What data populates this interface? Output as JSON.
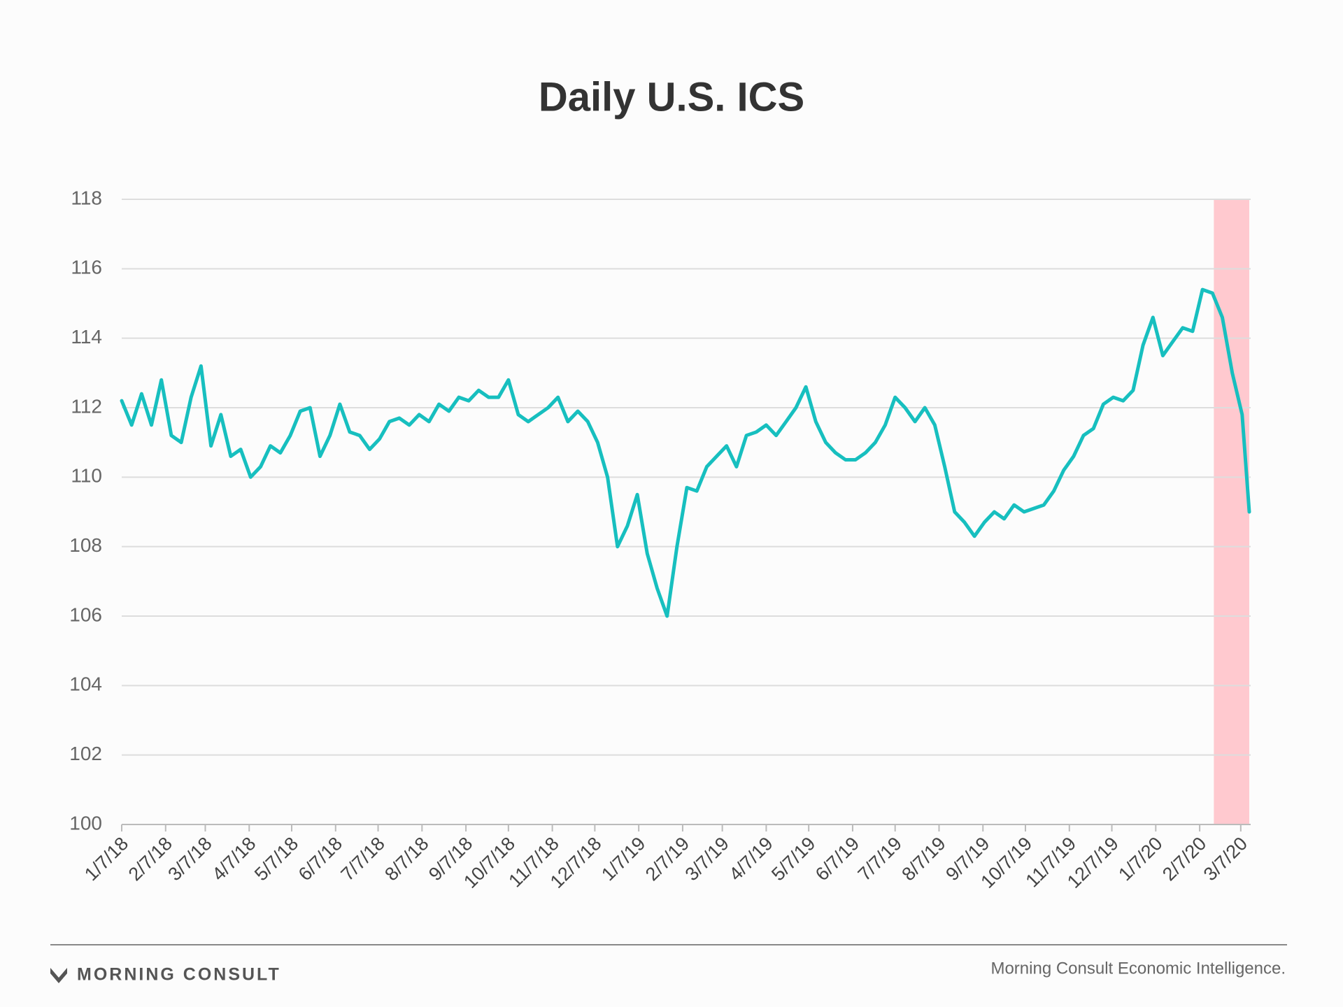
{
  "chart_data": {
    "type": "line",
    "title": "Daily U.S. ICS",
    "x": [
      "1/7/18",
      "1/14/18",
      "1/21/18",
      "1/28/18",
      "2/4/18",
      "2/11/18",
      "2/18/18",
      "2/25/18",
      "3/4/18",
      "3/11/18",
      "3/18/18",
      "3/25/18",
      "4/1/18",
      "4/8/18",
      "4/15/18",
      "4/22/18",
      "4/29/18",
      "5/6/18",
      "5/13/18",
      "5/20/18",
      "5/27/18",
      "6/3/18",
      "6/10/18",
      "6/17/18",
      "6/24/18",
      "7/1/18",
      "7/8/18",
      "7/15/18",
      "7/22/18",
      "7/29/18",
      "8/5/18",
      "8/12/18",
      "8/19/18",
      "8/26/18",
      "9/2/18",
      "9/9/18",
      "9/16/18",
      "9/23/18",
      "9/30/18",
      "10/7/18",
      "10/14/18",
      "10/21/18",
      "10/28/18",
      "11/4/18",
      "11/11/18",
      "11/18/18",
      "11/25/18",
      "12/2/18",
      "12/9/18",
      "12/16/18",
      "12/23/18",
      "12/30/18",
      "1/6/19",
      "1/13/19",
      "1/20/19",
      "1/27/19",
      "2/3/19",
      "2/10/19",
      "2/17/19",
      "2/24/19",
      "3/3/19",
      "3/10/19",
      "3/17/19",
      "3/24/19",
      "3/31/19",
      "4/7/19",
      "4/14/19",
      "4/21/19",
      "4/28/19",
      "5/5/19",
      "5/12/19",
      "5/19/19",
      "5/26/19",
      "6/2/19",
      "6/9/19",
      "6/16/19",
      "6/23/19",
      "6/30/19",
      "7/7/19",
      "7/14/19",
      "7/21/19",
      "7/28/19",
      "8/4/19",
      "8/11/19",
      "8/18/19",
      "8/25/19",
      "9/1/19",
      "9/8/19",
      "9/15/19",
      "9/22/19",
      "9/29/19",
      "10/6/19",
      "10/13/19",
      "10/20/19",
      "10/27/19",
      "11/3/19",
      "11/10/19",
      "11/17/19",
      "11/24/19",
      "12/1/19",
      "12/8/19",
      "12/15/19",
      "12/22/19",
      "12/29/19",
      "1/5/20",
      "1/12/20",
      "1/19/20",
      "1/26/20",
      "2/2/20",
      "2/9/20",
      "2/16/20",
      "2/23/20",
      "3/1/20",
      "3/8/20",
      "3/13/20"
    ],
    "series": [
      {
        "name": "Daily U.S. ICS",
        "color": "#17bfbf",
        "values": [
          112.2,
          111.5,
          112.4,
          111.5,
          112.8,
          111.2,
          111.0,
          112.3,
          113.2,
          110.9,
          111.8,
          110.6,
          110.8,
          110.0,
          110.3,
          110.9,
          110.7,
          111.2,
          111.9,
          112.0,
          110.6,
          111.2,
          112.1,
          111.3,
          111.2,
          110.8,
          111.1,
          111.6,
          111.7,
          111.5,
          111.8,
          111.6,
          112.1,
          111.9,
          112.3,
          112.2,
          112.5,
          112.3,
          112.3,
          112.8,
          111.8,
          111.6,
          111.8,
          112.0,
          112.3,
          111.6,
          111.9,
          111.6,
          111.0,
          110.0,
          108.0,
          108.6,
          109.5,
          107.8,
          106.8,
          106.0,
          108.0,
          109.7,
          109.6,
          110.3,
          110.6,
          110.9,
          110.3,
          111.2,
          111.3,
          111.5,
          111.2,
          111.6,
          112.0,
          112.6,
          111.6,
          111.0,
          110.7,
          110.5,
          110.5,
          110.7,
          111.0,
          111.5,
          112.3,
          112.0,
          111.6,
          112.0,
          111.5,
          110.3,
          109.0,
          108.7,
          108.3,
          108.7,
          109.0,
          108.8,
          109.2,
          109.0,
          109.1,
          109.2,
          109.6,
          110.2,
          110.6,
          111.2,
          111.4,
          112.1,
          112.3,
          112.2,
          112.5,
          113.8,
          114.6,
          113.5,
          113.9,
          114.3,
          114.2,
          115.4,
          115.3,
          114.6,
          113.0,
          111.8,
          109.0
        ]
      }
    ],
    "highlight": [
      "2/17/20",
      "3/13/20"
    ],
    "highlight_color": "#ffc9cf",
    "xlim": [
      "1/7/18",
      "3/14/20"
    ],
    "xticks": [
      "1/7/18",
      "2/7/18",
      "3/7/18",
      "4/7/18",
      "5/7/18",
      "6/7/18",
      "7/7/18",
      "8/7/18",
      "9/7/18",
      "10/7/18",
      "11/7/18",
      "12/7/18",
      "1/7/19",
      "2/7/19",
      "3/7/19",
      "4/7/19",
      "5/7/19",
      "6/7/19",
      "7/7/19",
      "8/7/19",
      "9/7/19",
      "10/7/19",
      "11/7/19",
      "12/7/19",
      "1/7/20",
      "2/7/20",
      "3/7/20"
    ],
    "ylim": [
      100,
      118
    ],
    "yticks": [
      100,
      102,
      104,
      106,
      108,
      110,
      112,
      114,
      116,
      118
    ],
    "grid": true
  },
  "footer": {
    "brand": "MORNING CONSULT",
    "source": "Morning Consult Economic Intelligence."
  }
}
